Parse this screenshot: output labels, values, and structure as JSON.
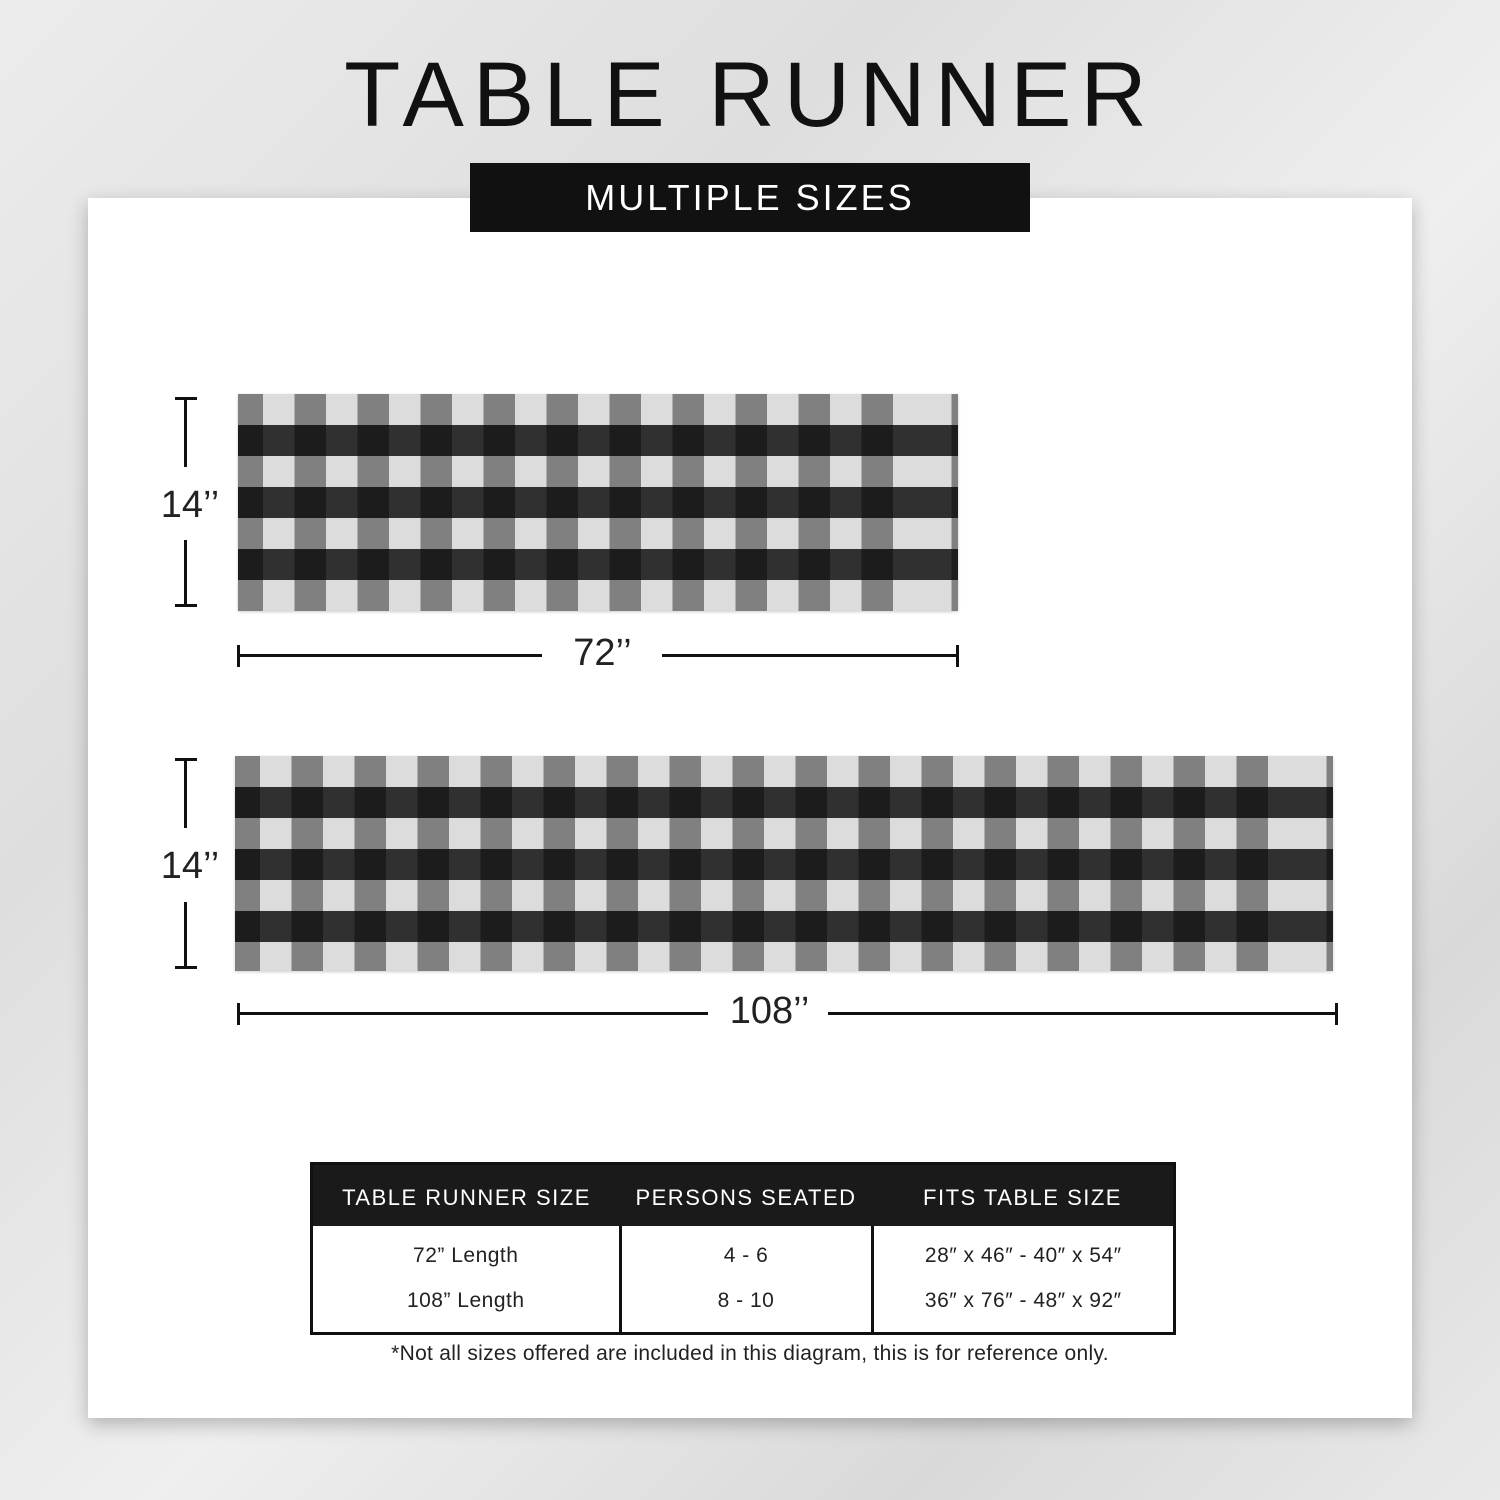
{
  "header": {
    "title": "TABLE RUNNER",
    "subtitle": "MULTIPLE SIZES"
  },
  "diagrams": [
    {
      "width_label": "72’’",
      "height_label": "14’’"
    },
    {
      "width_label": "108’’",
      "height_label": "14’’"
    }
  ],
  "pattern_colors": {
    "light": "#dcdcdc",
    "dark": "#111111"
  },
  "size_table": {
    "headers": [
      "TABLE RUNNER SIZE",
      "PERSONS SEATED",
      "FITS TABLE SIZE"
    ],
    "rows": [
      [
        "72” Length",
        "4 - 6",
        "28″ x 46″ - 40″ x 54″"
      ],
      [
        "108” Length",
        "8 - 10",
        "36″ x 76″ - 48″ x 92″"
      ]
    ]
  },
  "footnote": "*Not all sizes offered are included in this diagram, this is for reference only."
}
